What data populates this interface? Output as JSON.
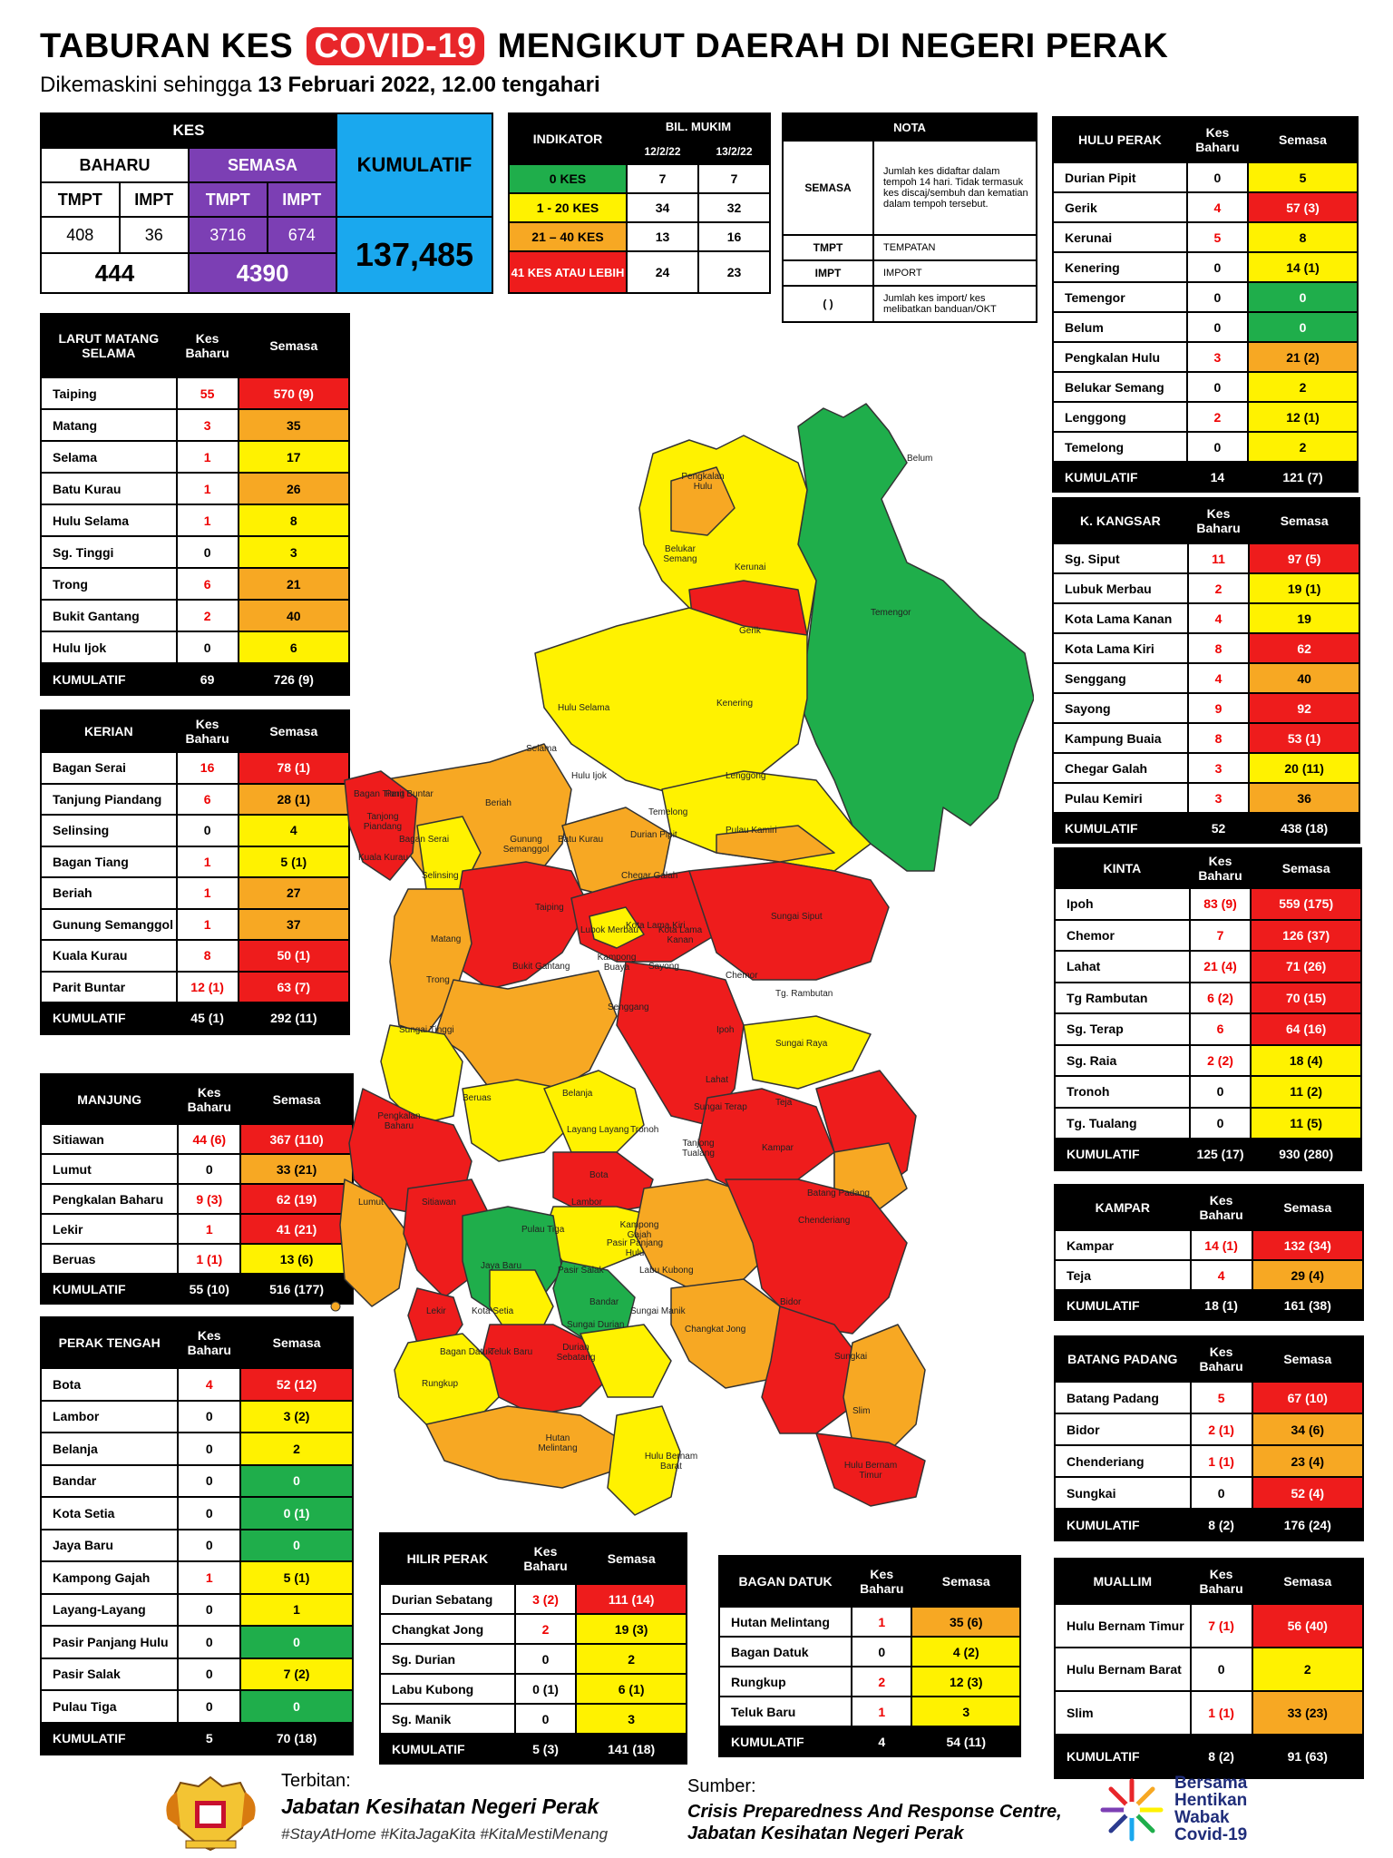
{
  "header": {
    "title_pre": "TABURAN KES",
    "title_covid": "COVID-19",
    "title_post": "MENGIKUT DAERAH DI NEGERI PERAK",
    "subtitle_pre": "Dikemaskini sehingga",
    "subtitle_bold": "13 Februari 2022, 12.00 tengahari"
  },
  "kes": {
    "heading": "KES",
    "baharu": "BAHARU",
    "semasa": "SEMASA",
    "kumulatif_label": "KUMULATIF",
    "tmpt": "TMPT",
    "impt": "IMPT",
    "baharu_tmpt": "408",
    "baharu_impt": "36",
    "semasa_tmpt": "3716",
    "semasa_impt": "674",
    "baharu_total": "444",
    "semasa_total": "4390",
    "kumulatif": "137,485"
  },
  "indikator": {
    "heading": "INDIKATOR",
    "bil_mukim": "BIL. MUKIM",
    "d1": "12/2/22",
    "d2": "13/2/22",
    "rows": [
      {
        "label": "0 KES",
        "a": "7",
        "b": "7"
      },
      {
        "label": "1 - 20 KES",
        "a": "34",
        "b": "32"
      },
      {
        "label": "21 – 40 KES",
        "a": "13",
        "b": "16"
      },
      {
        "label": "41 KES ATAU LEBIH",
        "a": "24",
        "b": "23"
      }
    ]
  },
  "nota": {
    "heading": "NOTA",
    "semasa_label": "SEMASA",
    "semasa_text": "Jumlah kes didaftar dalam tempoh 14 hari. Tidak termasuk kes discaj/sembuh dan kematian dalam tempoh tersebut.",
    "tmpt_label": "TMPT",
    "tmpt_text": "TEMPATAN",
    "impt_label": "IMPT",
    "impt_text": "IMPORT",
    "paren_label": "( )",
    "paren_text": "Jumlah kes import/ kes melibatkan banduan/OKT"
  },
  "tables": {
    "col_kes_baharu": "Kes Baharu",
    "col_semasa": "Semasa",
    "kumulatif": "KUMULATIF",
    "larut": {
      "name": "LARUT MATANG SELAMA",
      "rows": [
        [
          "Taiping",
          "55",
          "570 (9)",
          "red"
        ],
        [
          "Matang",
          "3",
          "35",
          "org"
        ],
        [
          "Selama",
          "1",
          "17",
          "yel"
        ],
        [
          "Batu Kurau",
          "1",
          "26",
          "org"
        ],
        [
          "Hulu Selama",
          "1",
          "8",
          "yel"
        ],
        [
          "Sg. Tinggi",
          "0",
          "3",
          "yel"
        ],
        [
          "Trong",
          "6",
          "21",
          "org"
        ],
        [
          "Bukit Gantang",
          "2",
          "40",
          "org"
        ],
        [
          "Hulu Ijok",
          "0",
          "6",
          "yel"
        ]
      ],
      "total": [
        "69",
        "726 (9)"
      ]
    },
    "kerian": {
      "name": "KERIAN",
      "rows": [
        [
          "Bagan Serai",
          "16",
          "78 (1)",
          "red"
        ],
        [
          "Tanjung Piandang",
          "6",
          "28 (1)",
          "org"
        ],
        [
          "Selinsing",
          "0",
          "4",
          "yel"
        ],
        [
          "Bagan Tiang",
          "1",
          "5 (1)",
          "yel"
        ],
        [
          "Beriah",
          "1",
          "27",
          "org"
        ],
        [
          "Gunung Semanggol",
          "1",
          "37",
          "org"
        ],
        [
          "Kuala Kurau",
          "8",
          "50 (1)",
          "red"
        ],
        [
          "Parit Buntar",
          "12 (1)",
          "63 (7)",
          "red"
        ]
      ],
      "total": [
        "45 (1)",
        "292 (11)"
      ]
    },
    "manjung": {
      "name": "MANJUNG",
      "rows": [
        [
          "Sitiawan",
          "44 (6)",
          "367 (110)",
          "red"
        ],
        [
          "Lumut",
          "0",
          "33 (21)",
          "org"
        ],
        [
          "Pengkalan Baharu",
          "9 (3)",
          "62 (19)",
          "red"
        ],
        [
          "Lekir",
          "1",
          "41 (21)",
          "red"
        ],
        [
          "Beruas",
          "1 (1)",
          "13 (6)",
          "yel"
        ]
      ],
      "total": [
        "55 (10)",
        "516 (177)"
      ]
    },
    "perak_tengah": {
      "name": "PERAK TENGAH",
      "rows": [
        [
          "Bota",
          "4",
          "52 (12)",
          "red"
        ],
        [
          "Lambor",
          "0",
          "3 (2)",
          "yel"
        ],
        [
          "Belanja",
          "0",
          "2",
          "yel"
        ],
        [
          "Bandar",
          "0",
          "0",
          "grn"
        ],
        [
          "Kota Setia",
          "0",
          "0 (1)",
          "grn"
        ],
        [
          "Jaya Baru",
          "0",
          "0",
          "grn"
        ],
        [
          "Kampong Gajah",
          "1",
          "5 (1)",
          "yel"
        ],
        [
          "Layang-Layang",
          "0",
          "1",
          "yel"
        ],
        [
          "Pasir Panjang Hulu",
          "0",
          "0",
          "grn"
        ],
        [
          "Pasir Salak",
          "0",
          "7 (2)",
          "yel"
        ],
        [
          "Pulau Tiga",
          "0",
          "0",
          "grn"
        ]
      ],
      "total": [
        "5",
        "70 (18)"
      ]
    },
    "hilir_perak": {
      "name": "HILIR PERAK",
      "rows": [
        [
          "Durian Sebatang",
          "3 (2)",
          "111 (14)",
          "red"
        ],
        [
          "Changkat Jong",
          "2",
          "19 (3)",
          "yel"
        ],
        [
          "Sg. Durian",
          "0",
          "2",
          "yel"
        ],
        [
          "Labu Kubong",
          "0 (1)",
          "6 (1)",
          "yel"
        ],
        [
          "Sg. Manik",
          "0",
          "3",
          "yel"
        ]
      ],
      "total": [
        "5 (3)",
        "141 (18)"
      ]
    },
    "bagan_datuk": {
      "name": "BAGAN DATUK",
      "rows": [
        [
          "Hutan Melintang",
          "1",
          "35 (6)",
          "org"
        ],
        [
          "Bagan Datuk",
          "0",
          "4 (2)",
          "yel"
        ],
        [
          "Rungkup",
          "2",
          "12 (3)",
          "yel"
        ],
        [
          "Teluk Baru",
          "1",
          "3",
          "yel"
        ]
      ],
      "total": [
        "4",
        "54 (11)"
      ]
    },
    "hulu_perak": {
      "name": "HULU PERAK",
      "rows": [
        [
          "Durian Pipit",
          "0",
          "5",
          "yel"
        ],
        [
          "Gerik",
          "4",
          "57 (3)",
          "red"
        ],
        [
          "Kerunai",
          "5",
          "8",
          "yel"
        ],
        [
          "Kenering",
          "0",
          "14 (1)",
          "yel"
        ],
        [
          "Temengor",
          "0",
          "0",
          "grn"
        ],
        [
          "Belum",
          "0",
          "0",
          "grn"
        ],
        [
          "Pengkalan Hulu",
          "3",
          "21 (2)",
          "org"
        ],
        [
          "Belukar Semang",
          "0",
          "2",
          "yel"
        ],
        [
          "Lenggong",
          "2",
          "12 (1)",
          "yel"
        ],
        [
          "Temelong",
          "0",
          "2",
          "yel"
        ]
      ],
      "total": [
        "14",
        "121 (7)"
      ]
    },
    "k_kangsar": {
      "name": "K. KANGSAR",
      "rows": [
        [
          "Sg. Siput",
          "11",
          "97 (5)",
          "red"
        ],
        [
          "Lubuk Merbau",
          "2",
          "19 (1)",
          "yel"
        ],
        [
          "Kota Lama Kanan",
          "4",
          "19",
          "yel"
        ],
        [
          "Kota Lama Kiri",
          "8",
          "62",
          "red"
        ],
        [
          "Senggang",
          "4",
          "40",
          "org"
        ],
        [
          "Sayong",
          "9",
          "92",
          "red"
        ],
        [
          "Kampung Buaia",
          "8",
          "53 (1)",
          "red"
        ],
        [
          "Chegar Galah",
          "3",
          "20 (11)",
          "yel"
        ],
        [
          "Pulau Kemiri",
          "3",
          "36",
          "org"
        ]
      ],
      "total": [
        "52",
        "438 (18)"
      ]
    },
    "kinta": {
      "name": "KINTA",
      "rows": [
        [
          "Ipoh",
          "83 (9)",
          "559 (175)",
          "red"
        ],
        [
          "Chemor",
          "7",
          "126 (37)",
          "red"
        ],
        [
          "Lahat",
          "21 (4)",
          "71 (26)",
          "red"
        ],
        [
          "Tg Rambutan",
          "6 (2)",
          "70 (15)",
          "red"
        ],
        [
          "Sg. Terap",
          "6",
          "64 (16)",
          "red"
        ],
        [
          "Sg. Raia",
          "2 (2)",
          "18 (4)",
          "yel"
        ],
        [
          "Tronoh",
          "0",
          "11 (2)",
          "yel"
        ],
        [
          "Tg. Tualang",
          "0",
          "11 (5)",
          "yel"
        ]
      ],
      "total": [
        "125 (17)",
        "930 (280)"
      ]
    },
    "kampar": {
      "name": "KAMPAR",
      "rows": [
        [
          "Kampar",
          "14 (1)",
          "132 (34)",
          "red"
        ],
        [
          "Teja",
          "4",
          "29 (4)",
          "org"
        ]
      ],
      "total": [
        "18 (1)",
        "161 (38)"
      ]
    },
    "batang_padang": {
      "name": "BATANG PADANG",
      "rows": [
        [
          "Batang Padang",
          "5",
          "67 (10)",
          "red"
        ],
        [
          "Bidor",
          "2 (1)",
          "34 (6)",
          "org"
        ],
        [
          "Chenderiang",
          "1 (1)",
          "23 (4)",
          "org"
        ],
        [
          "Sungkai",
          "0",
          "52 (4)",
          "red"
        ]
      ],
      "total": [
        "8 (2)",
        "176 (24)"
      ]
    },
    "muallim": {
      "name": "MUALLIM",
      "rows": [
        [
          "Hulu Bernam Timur",
          "7 (1)",
          "56 (40)",
          "red"
        ],
        [
          "Hulu Bernam Barat",
          "0",
          "2",
          "yel"
        ],
        [
          "Slim",
          "1 (1)",
          "33 (23)",
          "org"
        ]
      ],
      "total": [
        "8 (2)",
        "91 (63)"
      ]
    }
  },
  "map_labels": [
    "Belum",
    "Temengor",
    "Pengkalan Hulu",
    "Kerunai",
    "Belukar Semang",
    "Gerik",
    "Kenering",
    "Hulu Selama",
    "Selama",
    "Hulu Ijok",
    "Lenggong",
    "Temelong",
    "Durian Pipit",
    "Pulau Kamiri",
    "Beriah",
    "Gunung Semanggol",
    "Batu Kurau",
    "Chegar Galah",
    "Bagan Tiang",
    "Parit Buntar",
    "Tanjong Piandang",
    "Kuala Kurau",
    "Bagan Serai",
    "Selinsing",
    "Taiping",
    "Sungai Siput",
    "Lubok Merbau",
    "Kota Lama Kiri",
    "Kota Lama Kanan",
    "Kampong Buaya",
    "Sayong",
    "Matang",
    "Bukit Gantang",
    "Trong",
    "Chemor",
    "Tg. Rambutan",
    "Senggang",
    "Ipoh",
    "Sungai Tinggi",
    "Lahat",
    "Sungai Raya",
    "Pengkalan Baharu",
    "Beruas",
    "Belanja",
    "Sungai Terap",
    "Teja",
    "Layang Layang",
    "Tronoh",
    "Tanjong Tualang",
    "Kampar",
    "Bota",
    "Lumut",
    "Sitiawan",
    "Lambor",
    "Batang Padang",
    "Chenderiang",
    "Pulau Tiga",
    "Kampong Gajah",
    "Jaya Baru",
    "Pasir Salak",
    "Pasir Panjang Hulu",
    "Labu Kubong",
    "Bandar",
    "Bidor",
    "Lekir",
    "Kota Setia",
    "Sungai Durian",
    "Sungai Manik",
    "Changkat Jong",
    "Bagan Datuk",
    "Teluk Baru",
    "Durian Sebatang",
    "Sungkai",
    "Rungkup",
    "Slim",
    "Hutan Melintang",
    "Hulu Bernam Barat",
    "Hulu Bernam Timur"
  ],
  "colors": {
    "red": "#ee1c1c",
    "orange": "#f7a823",
    "yellow": "#fff200",
    "green": "#1fae4b"
  },
  "footer": {
    "terbitan": "Terbitan:",
    "publisher": "Jabatan Kesihatan Negeri Perak",
    "hashtags": "#StayAtHome #KitaJagaKita #KitaMestiMenang",
    "sumber": "Sumber:",
    "source1": "Crisis Preparedness And Response Centre,",
    "source2": "Jabatan Kesihatan Negeri Perak",
    "logo_text": [
      "Bersama",
      "Hentikan",
      "Wabak",
      "Covid-19"
    ]
  }
}
